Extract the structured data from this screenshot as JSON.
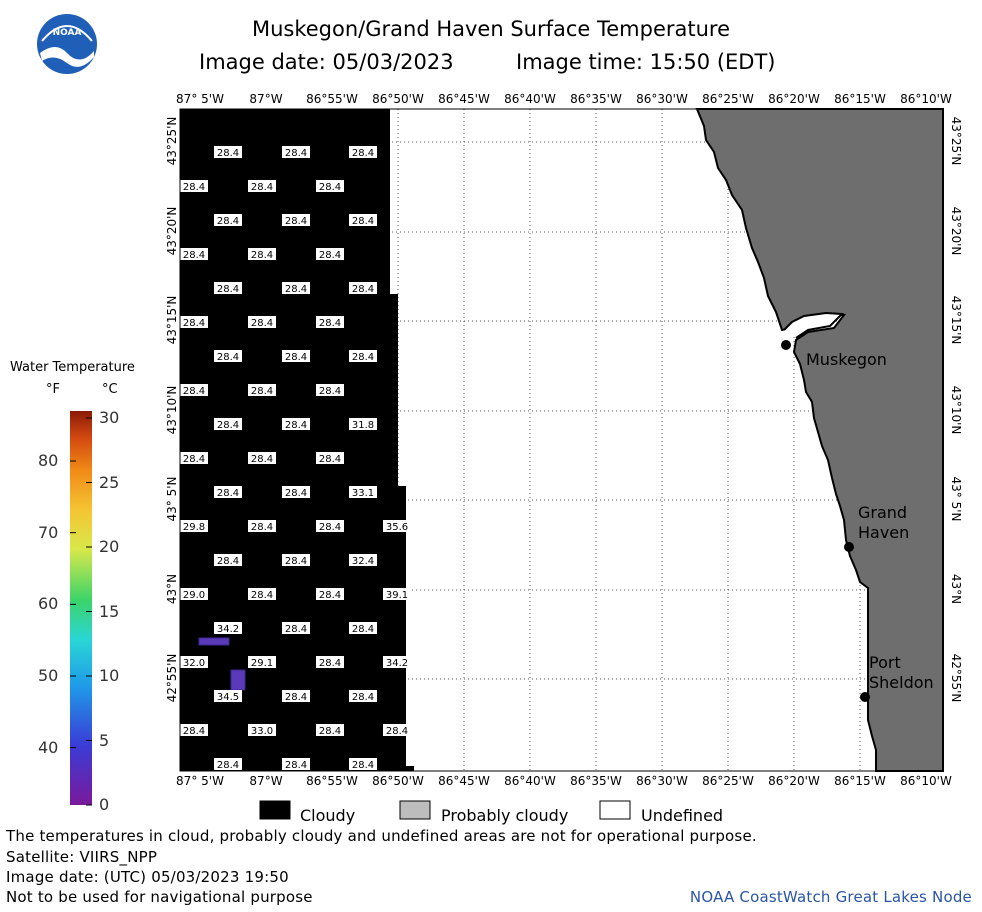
{
  "header": {
    "title": "Muskegon/Grand Haven Surface Temperature",
    "image_date": "Image date: 05/03/2023",
    "image_time": "Image time: 15:50 (EDT)",
    "logo_text": "NOAA"
  },
  "map": {
    "lon_labels": [
      "87° 5'W",
      "87°W",
      "86°55'W",
      "86°50'W",
      "86°45'W",
      "86°40'W",
      "86°35'W",
      "86°30'W",
      "86°25'W",
      "86°20'W",
      "86°15'W",
      "86°10'W"
    ],
    "lat_labels": [
      "43°25'N",
      "43°20'N",
      "43°15'N",
      "43°10'N",
      "43° 5'N",
      "43°N",
      "42°55'N"
    ],
    "places": [
      {
        "name": "Muskegon",
        "lines": [
          "Muskegon"
        ]
      },
      {
        "name": "Grand Haven",
        "lines": [
          "Grand",
          "Haven"
        ]
      },
      {
        "name": "Port Sheldon",
        "lines": [
          "Port",
          "Sheldon"
        ]
      }
    ],
    "temp_rows": [
      [
        "28.4",
        "28.4",
        "28.4"
      ],
      [
        "28.4",
        "28.4",
        "28.4"
      ],
      [
        "28.4",
        "28.4",
        "28.4"
      ],
      [
        "28.4",
        "28.4",
        "28.4"
      ],
      [
        "28.4",
        "28.4",
        "28.4"
      ],
      [
        "28.4",
        "28.4",
        "28.4"
      ],
      [
        "28.4",
        "28.4",
        "28.4"
      ],
      [
        "28.4",
        "28.4",
        "28.4"
      ],
      [
        "28.4",
        "28.4",
        "31.8"
      ],
      [
        "28.4",
        "28.4",
        "28.4"
      ],
      [
        "28.4",
        "28.4",
        "33.1"
      ],
      [
        "29.8",
        "28.4",
        "28.4",
        "35.6"
      ],
      [
        "28.4",
        "28.4",
        "32.4"
      ],
      [
        "29.0",
        "28.4",
        "28.4",
        "39.1"
      ],
      [
        "34.2",
        "28.4",
        "28.4"
      ],
      [
        "32.0",
        "29.1",
        "28.4",
        "34.2"
      ],
      [
        "34.5",
        "28.4",
        "28.4"
      ],
      [
        "28.4",
        "33.0",
        "28.4",
        "28.4"
      ],
      [
        "28.4",
        "28.4",
        "28.4"
      ]
    ]
  },
  "colorbar": {
    "title": "Water Temperature",
    "unit_f": "°F",
    "unit_c": "°C",
    "f_labels": [
      "80",
      "70",
      "60",
      "50",
      "40"
    ],
    "c_labels": [
      "30",
      "25",
      "20",
      "15",
      "10",
      "5",
      "0"
    ]
  },
  "legend": {
    "cloudy": "Cloudy",
    "probably_cloudy": "Probably cloudy",
    "undefined": "Undefined"
  },
  "footer": {
    "note": "The temperatures in cloud, probably cloudy and undefined areas are not for operational purpose.",
    "satellite": "Satellite: VIIRS_NPP",
    "utc_date": "Image date: (UTC) 05/03/2023  19:50",
    "nav_warning": "Not to be used for navigational purpose",
    "credit": "NOAA CoastWatch Great Lakes Node"
  },
  "colors": {
    "cloudy": "#000000",
    "probably_cloudy": "#bdbdbd",
    "land": "#6e6e6e",
    "credit_text": "#2955a8"
  }
}
